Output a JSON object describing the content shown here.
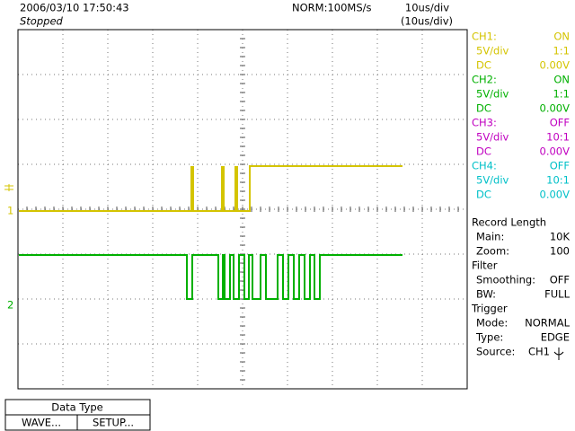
{
  "header": {
    "datetime": "2006/03/10  17:50:43",
    "status": "Stopped",
    "acquisition": "NORM:100MS/s",
    "timebase": "10us/div",
    "zoom_timebase": "(10us/div)"
  },
  "channels": [
    {
      "name": "CH1:",
      "state": "ON",
      "scale": "5V/div",
      "probe": "1:1",
      "coupling": "DC",
      "offset": "0.00V",
      "color": "#d4c400"
    },
    {
      "name": "CH2:",
      "state": "ON",
      "scale": "5V/div",
      "probe": "1:1",
      "coupling": "DC",
      "offset": "0.00V",
      "color": "#00b000"
    },
    {
      "name": "CH3:",
      "state": "OFF",
      "scale": "5V/div",
      "probe": "10:1",
      "coupling": "DC",
      "offset": "0.00V",
      "color": "#c000c0"
    },
    {
      "name": "CH4:",
      "state": "OFF",
      "scale": "5V/div",
      "probe": "10:1",
      "coupling": "DC",
      "offset": "0.00V",
      "color": "#00c0c8"
    }
  ],
  "record": {
    "title": "Record Length",
    "rows": [
      [
        "Main:",
        "10K"
      ],
      [
        "Zoom:",
        "100"
      ]
    ]
  },
  "filter": {
    "title": "Filter",
    "rows": [
      [
        "Smoothing:",
        "OFF"
      ],
      [
        "BW:",
        "FULL"
      ]
    ]
  },
  "trigger": {
    "title": "Trigger",
    "rows": [
      [
        "Mode:",
        "NORMAL"
      ],
      [
        "Type:",
        "EDGE"
      ],
      [
        "Source:",
        "CH1"
      ]
    ]
  },
  "markers": [
    "1",
    "2"
  ],
  "menu": {
    "title": "Data Type",
    "buttons": [
      "WAVE...",
      "SETUP..."
    ]
  }
}
